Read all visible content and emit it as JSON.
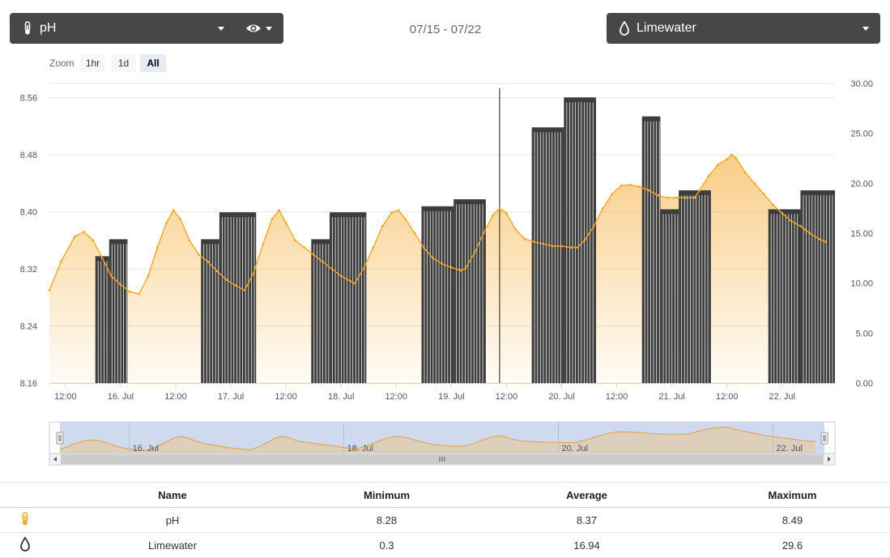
{
  "header": {
    "left_select": {
      "label": "pH",
      "icon": "thermometer-icon"
    },
    "visibility_icon": "eye-icon",
    "date_range": "07/15 - 07/22",
    "right_select": {
      "label": "Limewater",
      "icon": "drop-icon"
    }
  },
  "zoom": {
    "label": "Zoom",
    "buttons": [
      "1hr",
      "1d",
      "All"
    ],
    "active": "All"
  },
  "colors": {
    "area": "#f5a623",
    "bars": "#3d3d3d",
    "dropdown_bg": "#474747"
  },
  "chart_data": {
    "type": "area+bar",
    "title": "",
    "x_unit": "hours since 15 Jul 00:00",
    "x_range": [
      8.5,
      179.5
    ],
    "x_ticks": [
      {
        "x": 12,
        "label": "12:00"
      },
      {
        "x": 24,
        "label": "16. Jul"
      },
      {
        "x": 36,
        "label": "12:00"
      },
      {
        "x": 48,
        "label": "17. Jul"
      },
      {
        "x": 60,
        "label": "12:00"
      },
      {
        "x": 72,
        "label": "18. Jul"
      },
      {
        "x": 84,
        "label": "12:00"
      },
      {
        "x": 96,
        "label": "19. Jul"
      },
      {
        "x": 108,
        "label": "12:00"
      },
      {
        "x": 120,
        "label": "20. Jul"
      },
      {
        "x": 132,
        "label": "12:00"
      },
      {
        "x": 144,
        "label": "21. Jul"
      },
      {
        "x": 156,
        "label": "12:00"
      },
      {
        "x": 168,
        "label": "22. Jul"
      }
    ],
    "y_left": {
      "label": "pH",
      "range": [
        8.16,
        8.58
      ],
      "ticks": [
        "8.16",
        "8.24",
        "8.32",
        "8.40",
        "8.48",
        "8.56"
      ]
    },
    "y_right": {
      "label": "Limewater",
      "range": [
        0,
        30
      ],
      "ticks": [
        "0.00",
        "5.00",
        "10.00",
        "15.00",
        "20.00",
        "25.00",
        "30.00"
      ]
    },
    "series": [
      {
        "name": "pH",
        "type": "area",
        "axis": "left",
        "points": [
          [
            8.5,
            8.29
          ],
          [
            11,
            8.33
          ],
          [
            14,
            8.365
          ],
          [
            16,
            8.372
          ],
          [
            18,
            8.36
          ],
          [
            20,
            8.335
          ],
          [
            22,
            8.31
          ],
          [
            24,
            8.298
          ],
          [
            26,
            8.288
          ],
          [
            28,
            8.285
          ],
          [
            30,
            8.31
          ],
          [
            32,
            8.35
          ],
          [
            34,
            8.385
          ],
          [
            35.5,
            8.402
          ],
          [
            37,
            8.39
          ],
          [
            39,
            8.36
          ],
          [
            41,
            8.34
          ],
          [
            43,
            8.33
          ],
          [
            45,
            8.317
          ],
          [
            47,
            8.305
          ],
          [
            49,
            8.297
          ],
          [
            51,
            8.29
          ],
          [
            53,
            8.315
          ],
          [
            55,
            8.355
          ],
          [
            57,
            8.39
          ],
          [
            58.5,
            8.402
          ],
          [
            60,
            8.385
          ],
          [
            62,
            8.36
          ],
          [
            64,
            8.35
          ],
          [
            66,
            8.34
          ],
          [
            68,
            8.33
          ],
          [
            70,
            8.32
          ],
          [
            72,
            8.31
          ],
          [
            74,
            8.303
          ],
          [
            75,
            8.3
          ],
          [
            77,
            8.322
          ],
          [
            79,
            8.35
          ],
          [
            81,
            8.38
          ],
          [
            83,
            8.399
          ],
          [
            84.5,
            8.402
          ],
          [
            86,
            8.39
          ],
          [
            88,
            8.37
          ],
          [
            90,
            8.35
          ],
          [
            92,
            8.335
          ],
          [
            94,
            8.327
          ],
          [
            96,
            8.322
          ],
          [
            98,
            8.318
          ],
          [
            99,
            8.32
          ],
          [
            101,
            8.342
          ],
          [
            103,
            8.37
          ],
          [
            105,
            8.395
          ],
          [
            106.5,
            8.405
          ],
          [
            108,
            8.398
          ],
          [
            110,
            8.375
          ],
          [
            112,
            8.362
          ],
          [
            114,
            8.358
          ],
          [
            116,
            8.355
          ],
          [
            118,
            8.352
          ],
          [
            120,
            8.352
          ],
          [
            122,
            8.35
          ],
          [
            123.5,
            8.35
          ],
          [
            125,
            8.36
          ],
          [
            127,
            8.38
          ],
          [
            129,
            8.405
          ],
          [
            131,
            8.425
          ],
          [
            133,
            8.437
          ],
          [
            135,
            8.438
          ],
          [
            137,
            8.435
          ],
          [
            139,
            8.43
          ],
          [
            141,
            8.423
          ],
          [
            143,
            8.42
          ],
          [
            145,
            8.42
          ],
          [
            147,
            8.42
          ],
          [
            149,
            8.42
          ],
          [
            150,
            8.43
          ],
          [
            152,
            8.45
          ],
          [
            154,
            8.466
          ],
          [
            156,
            8.474
          ],
          [
            157,
            8.48
          ],
          [
            158,
            8.475
          ],
          [
            160,
            8.455
          ],
          [
            162,
            8.44
          ],
          [
            164,
            8.425
          ],
          [
            166,
            8.41
          ],
          [
            168,
            8.398
          ],
          [
            170,
            8.387
          ],
          [
            172,
            8.38
          ],
          [
            173,
            8.375
          ],
          [
            174,
            8.37
          ],
          [
            176,
            8.362
          ],
          [
            177.5,
            8.358
          ]
        ]
      },
      {
        "name": "Limewater",
        "type": "column",
        "axis": "right",
        "blocks": [
          {
            "start": 18.5,
            "end": 21.5,
            "value": 12.7
          },
          {
            "start": 21.5,
            "end": 25.5,
            "value": 14.4
          },
          {
            "start": 41.5,
            "end": 45.5,
            "value": 14.4
          },
          {
            "start": 45.5,
            "end": 53.5,
            "value": 17.1
          },
          {
            "start": 65.5,
            "end": 69.5,
            "value": 14.4
          },
          {
            "start": 69.5,
            "end": 77.5,
            "value": 17.1
          },
          {
            "start": 89.5,
            "end": 96.5,
            "value": 17.7
          },
          {
            "start": 96.5,
            "end": 103.5,
            "value": 18.4
          },
          {
            "start": 113.5,
            "end": 120.5,
            "value": 25.6
          },
          {
            "start": 120.5,
            "end": 127.5,
            "value": 28.6
          },
          {
            "start": 137.5,
            "end": 141.5,
            "value": 26.7
          },
          {
            "start": 141.5,
            "end": 145.5,
            "value": 17.4
          },
          {
            "start": 145.5,
            "end": 152.5,
            "value": 19.3
          },
          {
            "start": 165,
            "end": 172,
            "value": 17.4
          },
          {
            "start": 172,
            "end": 179.5,
            "value": 19.3
          }
        ],
        "spikes": [
          {
            "x": 106.5,
            "value": 29.5
          }
        ]
      }
    ]
  },
  "navigator": {
    "tick_labels": [
      {
        "x": 24,
        "label": "16. Jul"
      },
      {
        "x": 72,
        "label": "18. Jul"
      },
      {
        "x": 120,
        "label": "20. Jul"
      },
      {
        "x": 168,
        "label": "22. Jul"
      }
    ]
  },
  "stats": {
    "headers": [
      "Name",
      "Minimum",
      "Average",
      "Maximum"
    ],
    "rows": [
      {
        "icon": "thermometer-icon",
        "name": "pH",
        "min": "8.28",
        "avg": "8.37",
        "max": "8.49"
      },
      {
        "icon": "drop-icon",
        "name": "Limewater",
        "min": "0.3",
        "avg": "16.94",
        "max": "29.6"
      }
    ]
  }
}
